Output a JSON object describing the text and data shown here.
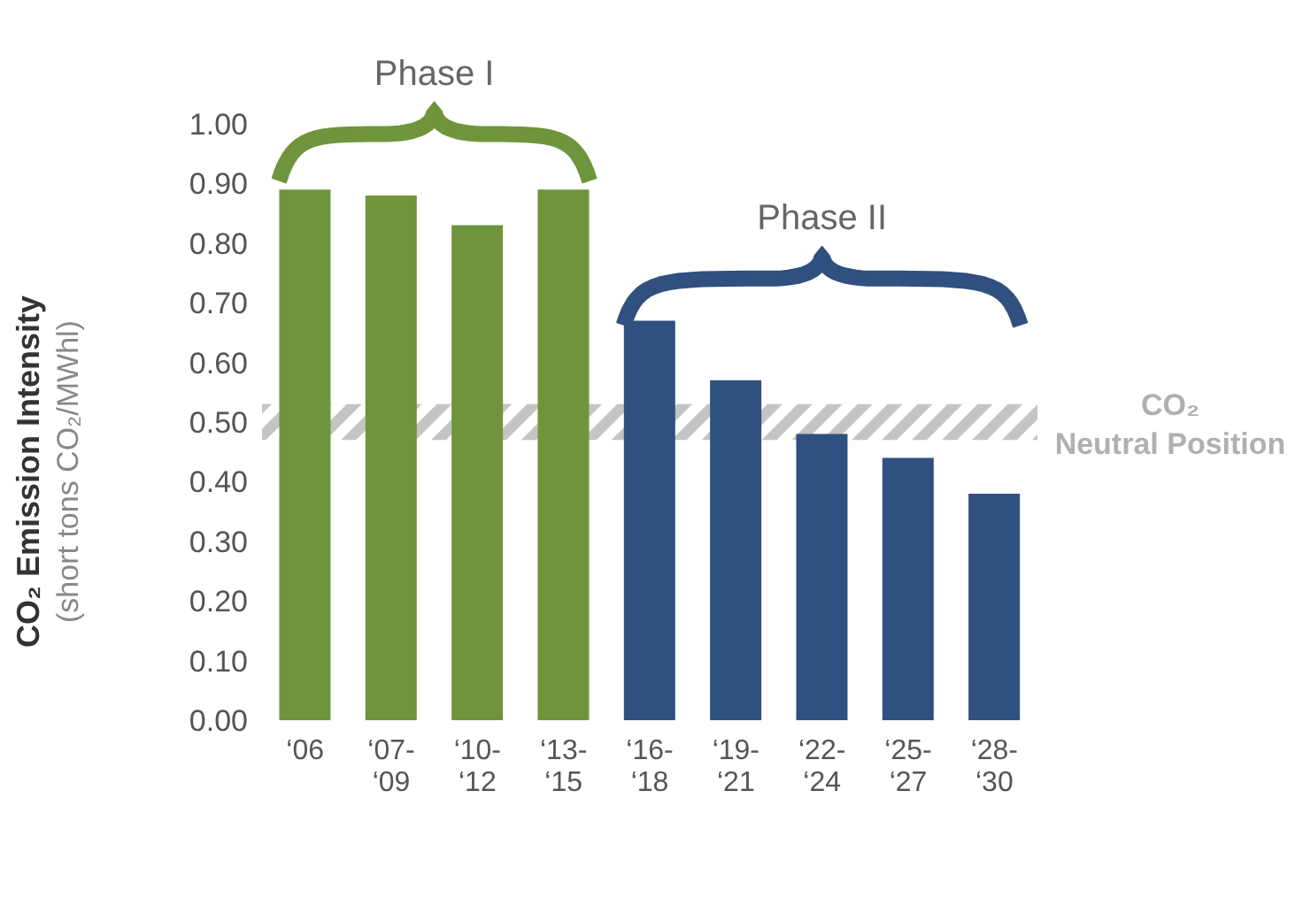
{
  "chart_data": {
    "type": "bar",
    "categories": [
      "‘06",
      "‘07-\n‘09",
      "‘10-\n‘12",
      "‘13-\n‘15",
      "‘16-\n‘18",
      "‘19-\n‘21",
      "‘22-\n‘24",
      "‘25-\n‘27",
      "‘28-\n‘30"
    ],
    "values": [
      0.89,
      0.88,
      0.83,
      0.89,
      0.67,
      0.57,
      0.48,
      0.44,
      0.38
    ],
    "colors": [
      "#6e953c",
      "#6e953c",
      "#6e953c",
      "#6e953c",
      "#30507f",
      "#30507f",
      "#30507f",
      "#30507f",
      "#30507f"
    ],
    "ylabel": "CO₂ Emission Intensity\n(short tons CO₂/MWhl)",
    "ylim": [
      0,
      1.0
    ],
    "yticks": [
      {
        "value": 0,
        "label": "0.00"
      },
      {
        "value": 0.1,
        "label": "0.10"
      },
      {
        "value": 0.2,
        "label": "0.20"
      },
      {
        "value": 0.3,
        "label": "0.30"
      },
      {
        "value": 0.4,
        "label": "0.40"
      },
      {
        "value": 0.5,
        "label": "0.50"
      },
      {
        "value": 0.6,
        "label": "0.60"
      },
      {
        "value": 0.7,
        "label": "0.70"
      },
      {
        "value": 0.8,
        "label": "0.80"
      },
      {
        "value": 0.9,
        "label": "0.90"
      },
      {
        "value": 1.0,
        "label": "1.00"
      }
    ],
    "bands": [
      {
        "axis": "y",
        "from": 0.47,
        "to": 0.53,
        "label": "CO₂ Neutral Position",
        "color": "#c4c4c4"
      }
    ],
    "annotations": [
      "Phase I",
      "Phase II"
    ],
    "grid": false,
    "legend": false
  }
}
